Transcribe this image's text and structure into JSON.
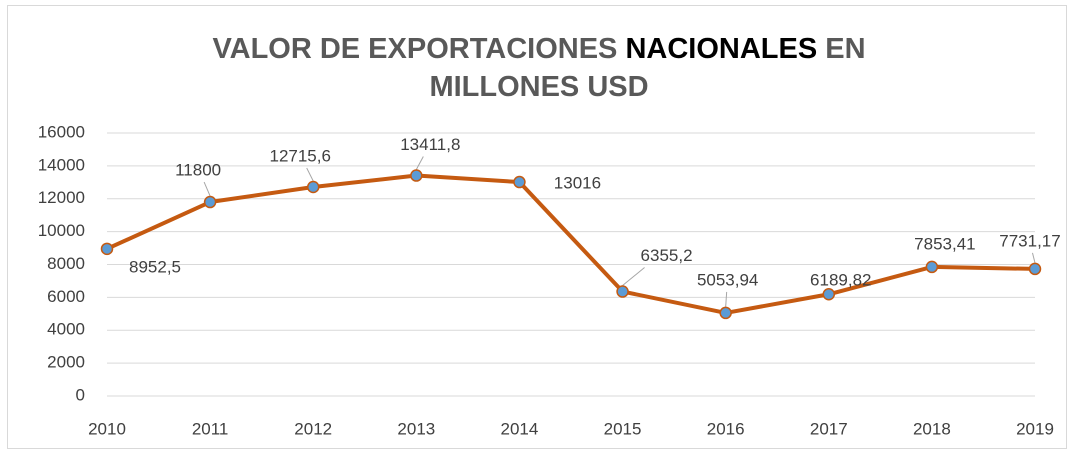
{
  "chart_data": {
    "type": "line",
    "title": [
      "VALOR DE EXPORTACIONES",
      "NACIONALES",
      "EN",
      "MILLONES USD"
    ],
    "x": [
      2010,
      2011,
      2012,
      2013,
      2014,
      2015,
      2016,
      2017,
      2018,
      2019
    ],
    "xlim": [
      2010,
      2019
    ],
    "xticks": [
      2010,
      2011,
      2012,
      2013,
      2014,
      2015,
      2016,
      2017,
      2018,
      2019
    ],
    "ylim": [
      0,
      16000
    ],
    "yticks": [
      0,
      2000,
      4000,
      6000,
      8000,
      10000,
      12000,
      14000,
      16000
    ],
    "grid": true,
    "series": [
      {
        "color": "#c55a11",
        "marker_color": "#5b9bd5",
        "values": [
          8952.5,
          11800,
          12715.6,
          13411.8,
          13016,
          6355.2,
          5053.94,
          6189.82,
          7853.41,
          7731.17
        ],
        "value_labels": [
          "8952,5",
          "11800",
          "12715,6",
          "13411,8",
          "13016",
          "6355,2",
          "5053,94",
          "6189,82",
          "7853,41",
          "7731,17"
        ]
      }
    ]
  }
}
